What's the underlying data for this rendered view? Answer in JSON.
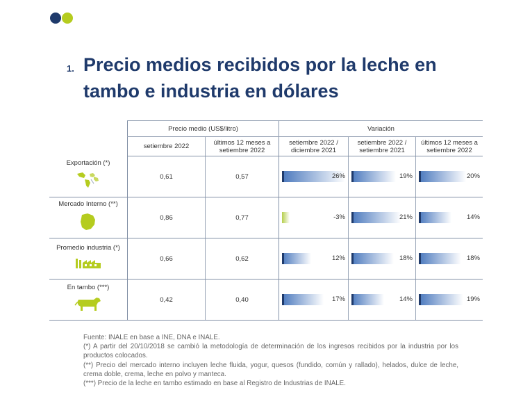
{
  "title": {
    "number": "1.",
    "text": "Precio medios recibidos por la leche en tambo e industria en dólares"
  },
  "table": {
    "group_headers": {
      "precio": "Precio medio (US$/litro)",
      "variacion": "Variación"
    },
    "sub_headers": {
      "sep2022": "setiembre 2022",
      "ult12": "últimos 12 meses a setiembre 2022",
      "var_sep_dic": "setiembre 2022 / diciembre 2021",
      "var_sep_sep": "setiembre 2022 / setiembre 2021",
      "var_ult12": "últimos 12 meses a setiembre 2022"
    },
    "rows": [
      {
        "label": "Exportación (*)",
        "icon": "world-map-icon",
        "sep2022": "0,61",
        "ult12": "0,57",
        "var1": "26%",
        "var1_value": 26,
        "var2": "19%",
        "var2_value": 19,
        "var3": "20%",
        "var3_value": 20
      },
      {
        "label": "Mercado Interno (**)",
        "icon": "uruguay-map-icon",
        "sep2022": "0,86",
        "ult12": "0,77",
        "var1": "-3%",
        "var1_value": -3,
        "var2": "21%",
        "var2_value": 21,
        "var3": "14%",
        "var3_value": 14
      },
      {
        "label": "Promedio industria (*)",
        "icon": "factory-icon",
        "sep2022": "0,66",
        "ult12": "0,62",
        "var1": "12%",
        "var1_value": 12,
        "var2": "18%",
        "var2_value": 18,
        "var3": "18%",
        "var3_value": 18
      },
      {
        "label": "En tambo (***)",
        "icon": "cow-icon",
        "sep2022": "0,42",
        "ult12": "0,40",
        "var1": "17%",
        "var1_value": 17,
        "var2": "14%",
        "var2_value": 14,
        "var3": "19%",
        "var3_value": 19
      }
    ]
  },
  "notes": [
    "Fuente: INALE en base a INE, DNA e INALE.",
    "(*) A partir del 20/10/2018 se cambió la metodología de determinación de los ingresos recibidos por la industria por los productos colocados.",
    "(**) Precio del mercado interno incluyen leche fluida, yogur, quesos (fundido, común y rallado), helados, dulce de leche, crema doble, crema, leche en polvo y manteca.",
    "(***) Precio de la leche en tambo estimado en base al Registro de Industrias de INALE."
  ],
  "colors": {
    "navy": "#1f3a6b",
    "lime": "#b5cc1f",
    "value_blue": "#1f6bb0",
    "bar_blue": "#4a78bd",
    "bar_negative": "#b6cf4d"
  }
}
